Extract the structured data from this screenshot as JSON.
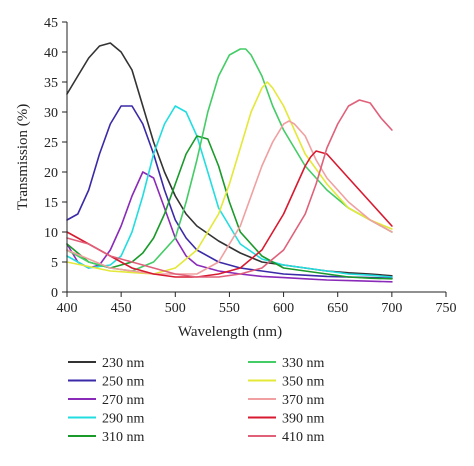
{
  "chart_data": {
    "type": "line",
    "xlabel": "Wavelength (nm)",
    "ylabel": "Transmission (%)",
    "xlim": [
      400,
      750
    ],
    "ylim": [
      0,
      45
    ],
    "xticks": [
      400,
      450,
      500,
      550,
      600,
      650,
      700,
      750
    ],
    "yticks": [
      0,
      5,
      10,
      15,
      20,
      25,
      30,
      35,
      40,
      45
    ],
    "legend_position": "bottom",
    "series": [
      {
        "name": "230 nm",
        "color": "#333333",
        "x": [
          400,
          410,
          420,
          430,
          440,
          450,
          460,
          470,
          480,
          490,
          500,
          510,
          520,
          540,
          560,
          580,
          600,
          620,
          640,
          660,
          680,
          700
        ],
        "y": [
          33,
          36,
          39,
          41,
          41.5,
          40,
          37,
          31,
          25,
          20,
          16,
          13,
          11,
          8.5,
          6.5,
          5,
          4.5,
          4,
          3.5,
          3.2,
          3,
          2.7
        ]
      },
      {
        "name": "250 nm",
        "color": "#3a2aa8",
        "x": [
          400,
          410,
          420,
          430,
          440,
          450,
          460,
          470,
          480,
          490,
          500,
          510,
          520,
          540,
          560,
          580,
          600,
          620,
          640,
          660,
          680,
          700
        ],
        "y": [
          12,
          13,
          17,
          23,
          28,
          31,
          31,
          28,
          23,
          17,
          12,
          9,
          7,
          5,
          4,
          3.5,
          3,
          2.8,
          2.6,
          2.5,
          2.4,
          2.3
        ]
      },
      {
        "name": "270 nm",
        "color": "#8a2ab8",
        "x": [
          400,
          410,
          420,
          430,
          440,
          450,
          460,
          470,
          480,
          490,
          500,
          510,
          520,
          540,
          560,
          580,
          600,
          620,
          640,
          660,
          680,
          700
        ],
        "y": [
          8,
          5,
          4,
          4.5,
          7,
          11,
          16,
          20,
          19,
          14,
          9,
          6,
          4.5,
          3.5,
          3,
          2.6,
          2.4,
          2.2,
          2,
          1.9,
          1.8,
          1.7
        ]
      },
      {
        "name": "290 nm",
        "color": "#22dde0",
        "x": [
          400,
          420,
          440,
          450,
          460,
          470,
          480,
          490,
          500,
          510,
          520,
          530,
          540,
          560,
          580,
          600,
          620,
          640,
          660,
          680,
          700
        ],
        "y": [
          6,
          4,
          4.5,
          6,
          10,
          16,
          23,
          28,
          31,
          30,
          26,
          20,
          14,
          8,
          5.5,
          4.5,
          4,
          3.5,
          3,
          2.8,
          2.5
        ]
      },
      {
        "name": "310 nm",
        "color": "#1a9a2a",
        "x": [
          400,
          420,
          440,
          460,
          470,
          480,
          490,
          500,
          510,
          520,
          530,
          540,
          550,
          560,
          580,
          600,
          620,
          640,
          660,
          680,
          700
        ],
        "y": [
          8,
          5,
          4,
          5,
          6.5,
          9,
          13,
          18,
          23,
          26,
          25.5,
          21,
          15,
          10,
          6,
          4,
          3.5,
          3,
          2.5,
          2.3,
          2.2
        ]
      },
      {
        "name": "330 nm",
        "color": "#44cc66",
        "x": [
          400,
          420,
          440,
          460,
          480,
          500,
          510,
          520,
          530,
          540,
          550,
          560,
          565,
          570,
          580,
          590,
          600,
          620,
          640,
          660,
          680,
          700
        ],
        "y": [
          7,
          5,
          4,
          3.5,
          5,
          9,
          15,
          22,
          30,
          36,
          39.5,
          40.5,
          40.5,
          39.5,
          36,
          31,
          27,
          21,
          17,
          14,
          12,
          10
        ]
      },
      {
        "name": "350 nm",
        "color": "#e4e838",
        "x": [
          400,
          440,
          480,
          500,
          520,
          540,
          550,
          560,
          570,
          580,
          585,
          590,
          600,
          610,
          620,
          640,
          660,
          680,
          700
        ],
        "y": [
          5,
          3.5,
          3,
          4,
          7,
          13,
          18,
          24,
          30,
          34,
          35,
          34,
          31,
          27,
          23,
          18,
          14,
          12,
          10.5
        ]
      },
      {
        "name": "370 nm",
        "color": "#f0a0a0",
        "x": [
          400,
          440,
          480,
          520,
          540,
          560,
          570,
          580,
          590,
          600,
          605,
          610,
          620,
          630,
          640,
          660,
          680,
          700
        ],
        "y": [
          7,
          4,
          3,
          3,
          5,
          11,
          16,
          21,
          25,
          28,
          28.5,
          28,
          26,
          22,
          19,
          15,
          12,
          10
        ]
      },
      {
        "name": "390 nm",
        "color": "#d81a30",
        "x": [
          400,
          420,
          440,
          460,
          480,
          500,
          520,
          540,
          560,
          580,
          600,
          610,
          620,
          625,
          630,
          640,
          650,
          660,
          680,
          700
        ],
        "y": [
          10,
          8,
          6,
          4,
          3,
          2.5,
          2.5,
          3,
          4,
          7,
          13,
          17,
          21,
          22.5,
          23.5,
          23,
          21,
          19,
          15,
          11
        ]
      },
      {
        "name": "410 nm",
        "color": "#e0607a",
        "x": [
          400,
          420,
          440,
          460,
          480,
          500,
          520,
          540,
          560,
          580,
          600,
          620,
          630,
          640,
          650,
          660,
          670,
          680,
          690,
          700
        ],
        "y": [
          9,
          8,
          6,
          5,
          4,
          3,
          2.5,
          2.5,
          3,
          4,
          7,
          13,
          18,
          24,
          28,
          31,
          32,
          31.5,
          29,
          27
        ]
      }
    ]
  }
}
